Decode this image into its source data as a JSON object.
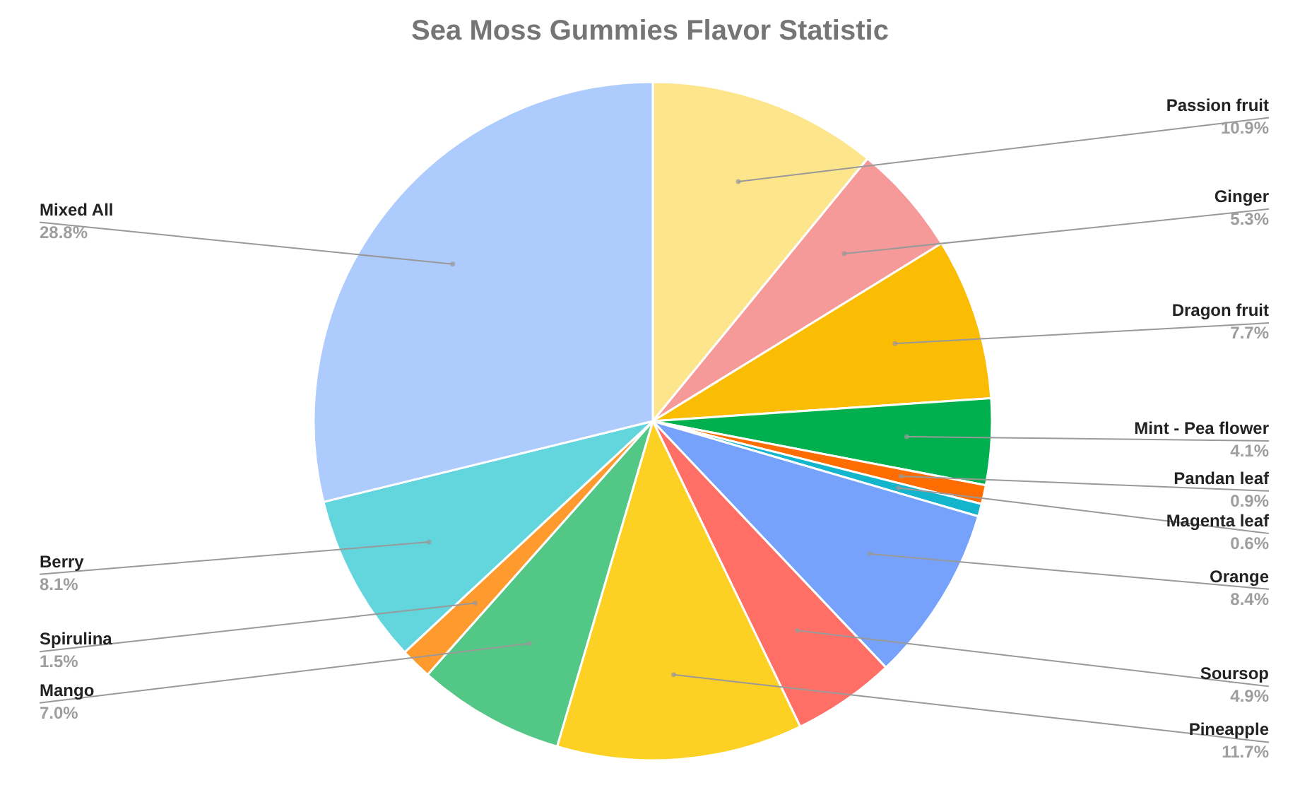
{
  "chart_data": {
    "type": "pie",
    "title": "Sea Moss Gummies Flavor Statistic",
    "categories": [
      "Passion fruit",
      "Ginger",
      "Dragon fruit",
      "Mint - Pea flower",
      "Pandan leaf",
      "Magenta leaf",
      "Orange",
      "Soursop",
      "Pineapple",
      "Mango",
      "Spirulina",
      "Berry",
      "Mixed All"
    ],
    "values": [
      10.9,
      5.3,
      7.7,
      4.1,
      0.9,
      0.6,
      8.4,
      4.9,
      11.7,
      7.0,
      1.5,
      8.1,
      28.8
    ],
    "value_labels": [
      "10.9%",
      "5.3%",
      "7.7%",
      "4.1%",
      "0.9%",
      "0.6%",
      "8.4%",
      "4.9%",
      "11.7%",
      "7.0%",
      "1.5%",
      "8.1%",
      "28.8%"
    ],
    "colors": [
      "#fde58b",
      "#f59a98",
      "#fbbc04",
      "#00b04f",
      "#ff6d01",
      "#12b5cb",
      "#76a2fb",
      "#ff6f66",
      "#fdd123",
      "#53c785",
      "#ff9a2e",
      "#63d5dc",
      "#aecbfd"
    ]
  }
}
